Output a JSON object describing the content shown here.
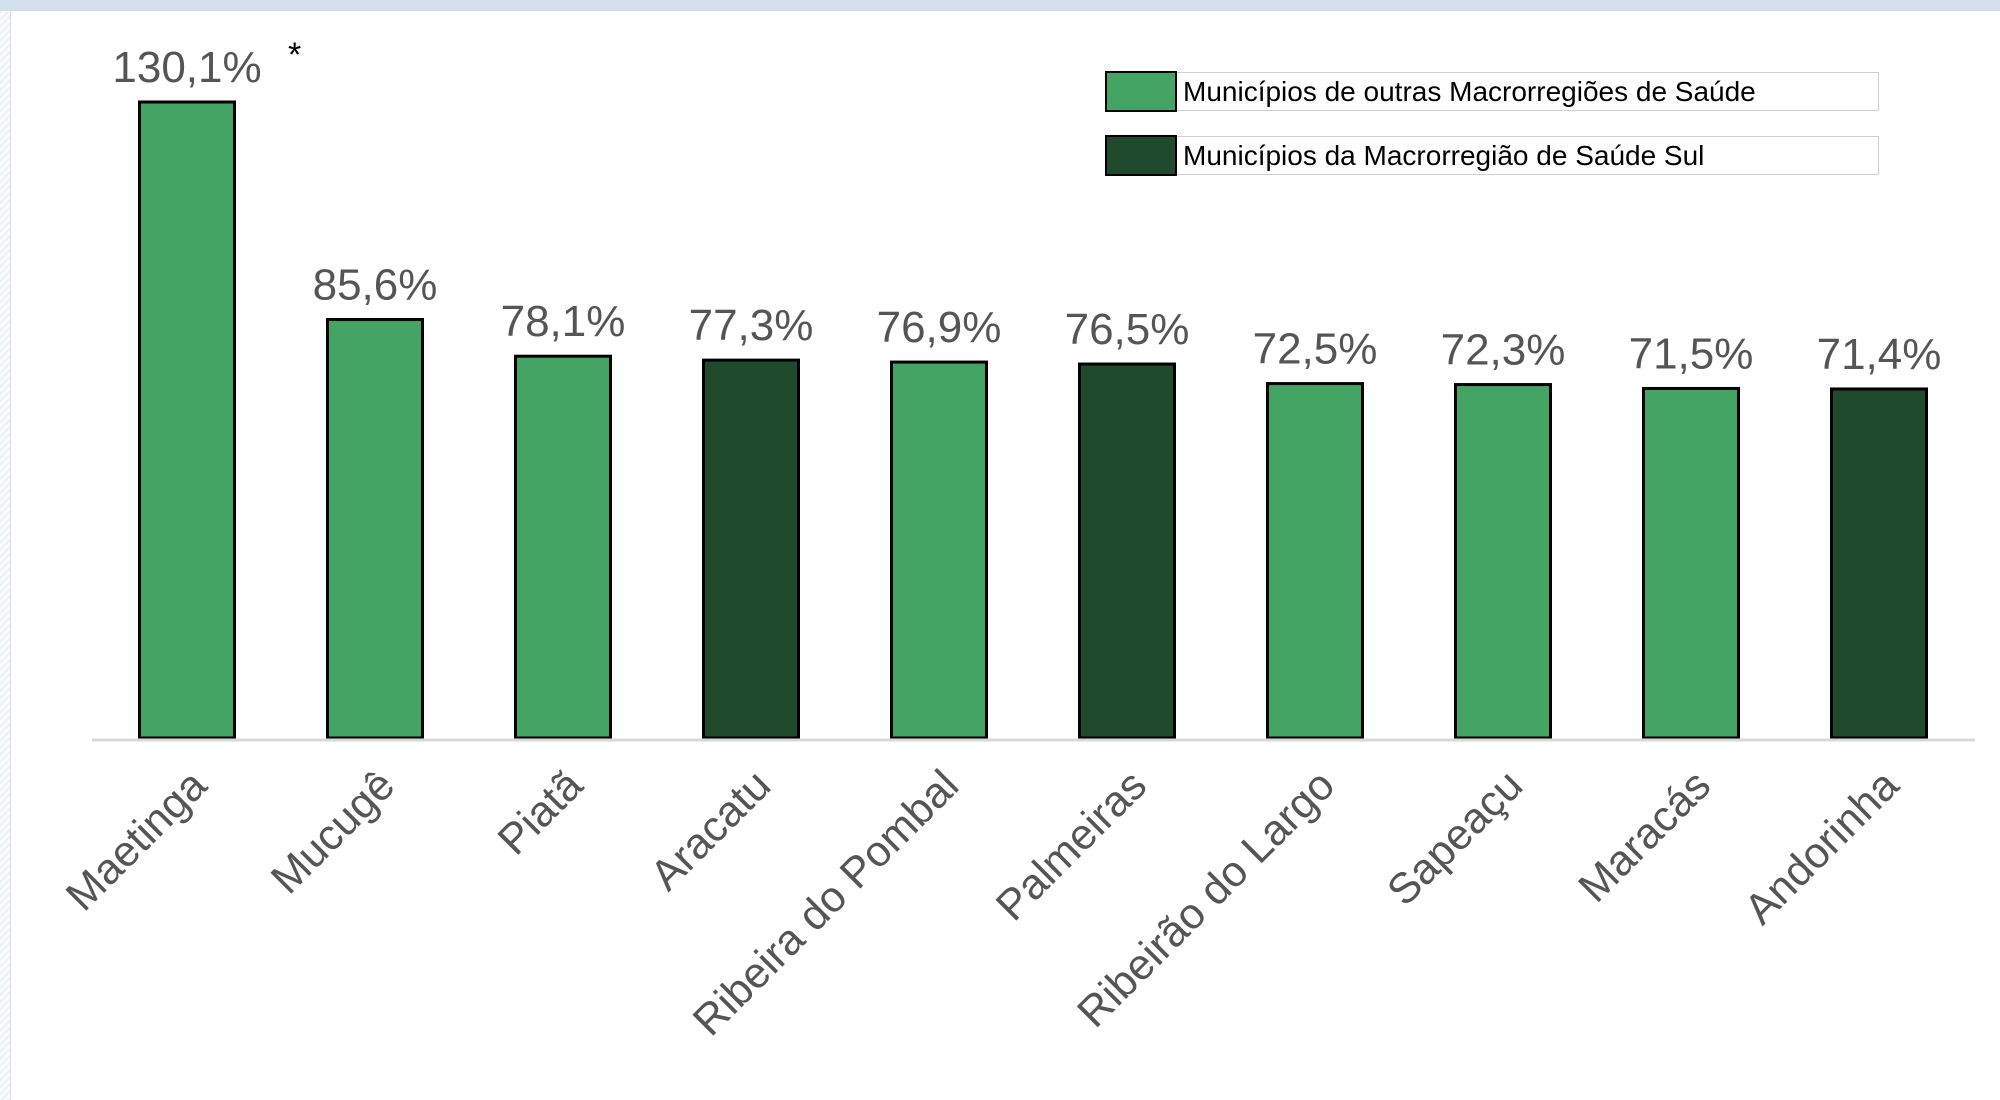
{
  "colors": {
    "outras": "#43a464",
    "sul": "#1f4a2c",
    "label_text": "#555555",
    "axis": "#d9d9d9"
  },
  "legend": {
    "items": [
      {
        "key": "outras",
        "label": "Municípios de outras Macrorregiões de Saúde",
        "color": "#43a464"
      },
      {
        "key": "sul",
        "label": "Municípios da Macrorregião de Saúde Sul",
        "color": "#1f4a2c"
      }
    ]
  },
  "chart_data": {
    "type": "bar",
    "categories": [
      "Maetinga",
      "Mucugê",
      "Piatã",
      "Aracatu",
      "Ribeira do Pombal",
      "Palmeiras",
      "Ribeirão do Largo",
      "Sapeaçu",
      "Maracás",
      "Andorinha"
    ],
    "values": [
      130.1,
      85.6,
      78.1,
      77.3,
      76.9,
      76.5,
      72.5,
      72.3,
      71.5,
      71.4
    ],
    "data_labels": [
      "130,1%",
      "85,6%",
      "78,1%",
      "77,3%",
      "76,9%",
      "76,5%",
      "72,5%",
      "72,3%",
      "71,5%",
      "71,4%"
    ],
    "groups": [
      "outras",
      "outras",
      "outras",
      "sul",
      "outras",
      "sul",
      "outras",
      "outras",
      "outras",
      "sul"
    ],
    "annotations": [
      {
        "category": "Maetinga",
        "text": "*"
      }
    ],
    "ylim": [
      0,
      130.1
    ],
    "grid": false,
    "legend_position": "top-right",
    "title": "",
    "xlabel": "",
    "ylabel": ""
  }
}
